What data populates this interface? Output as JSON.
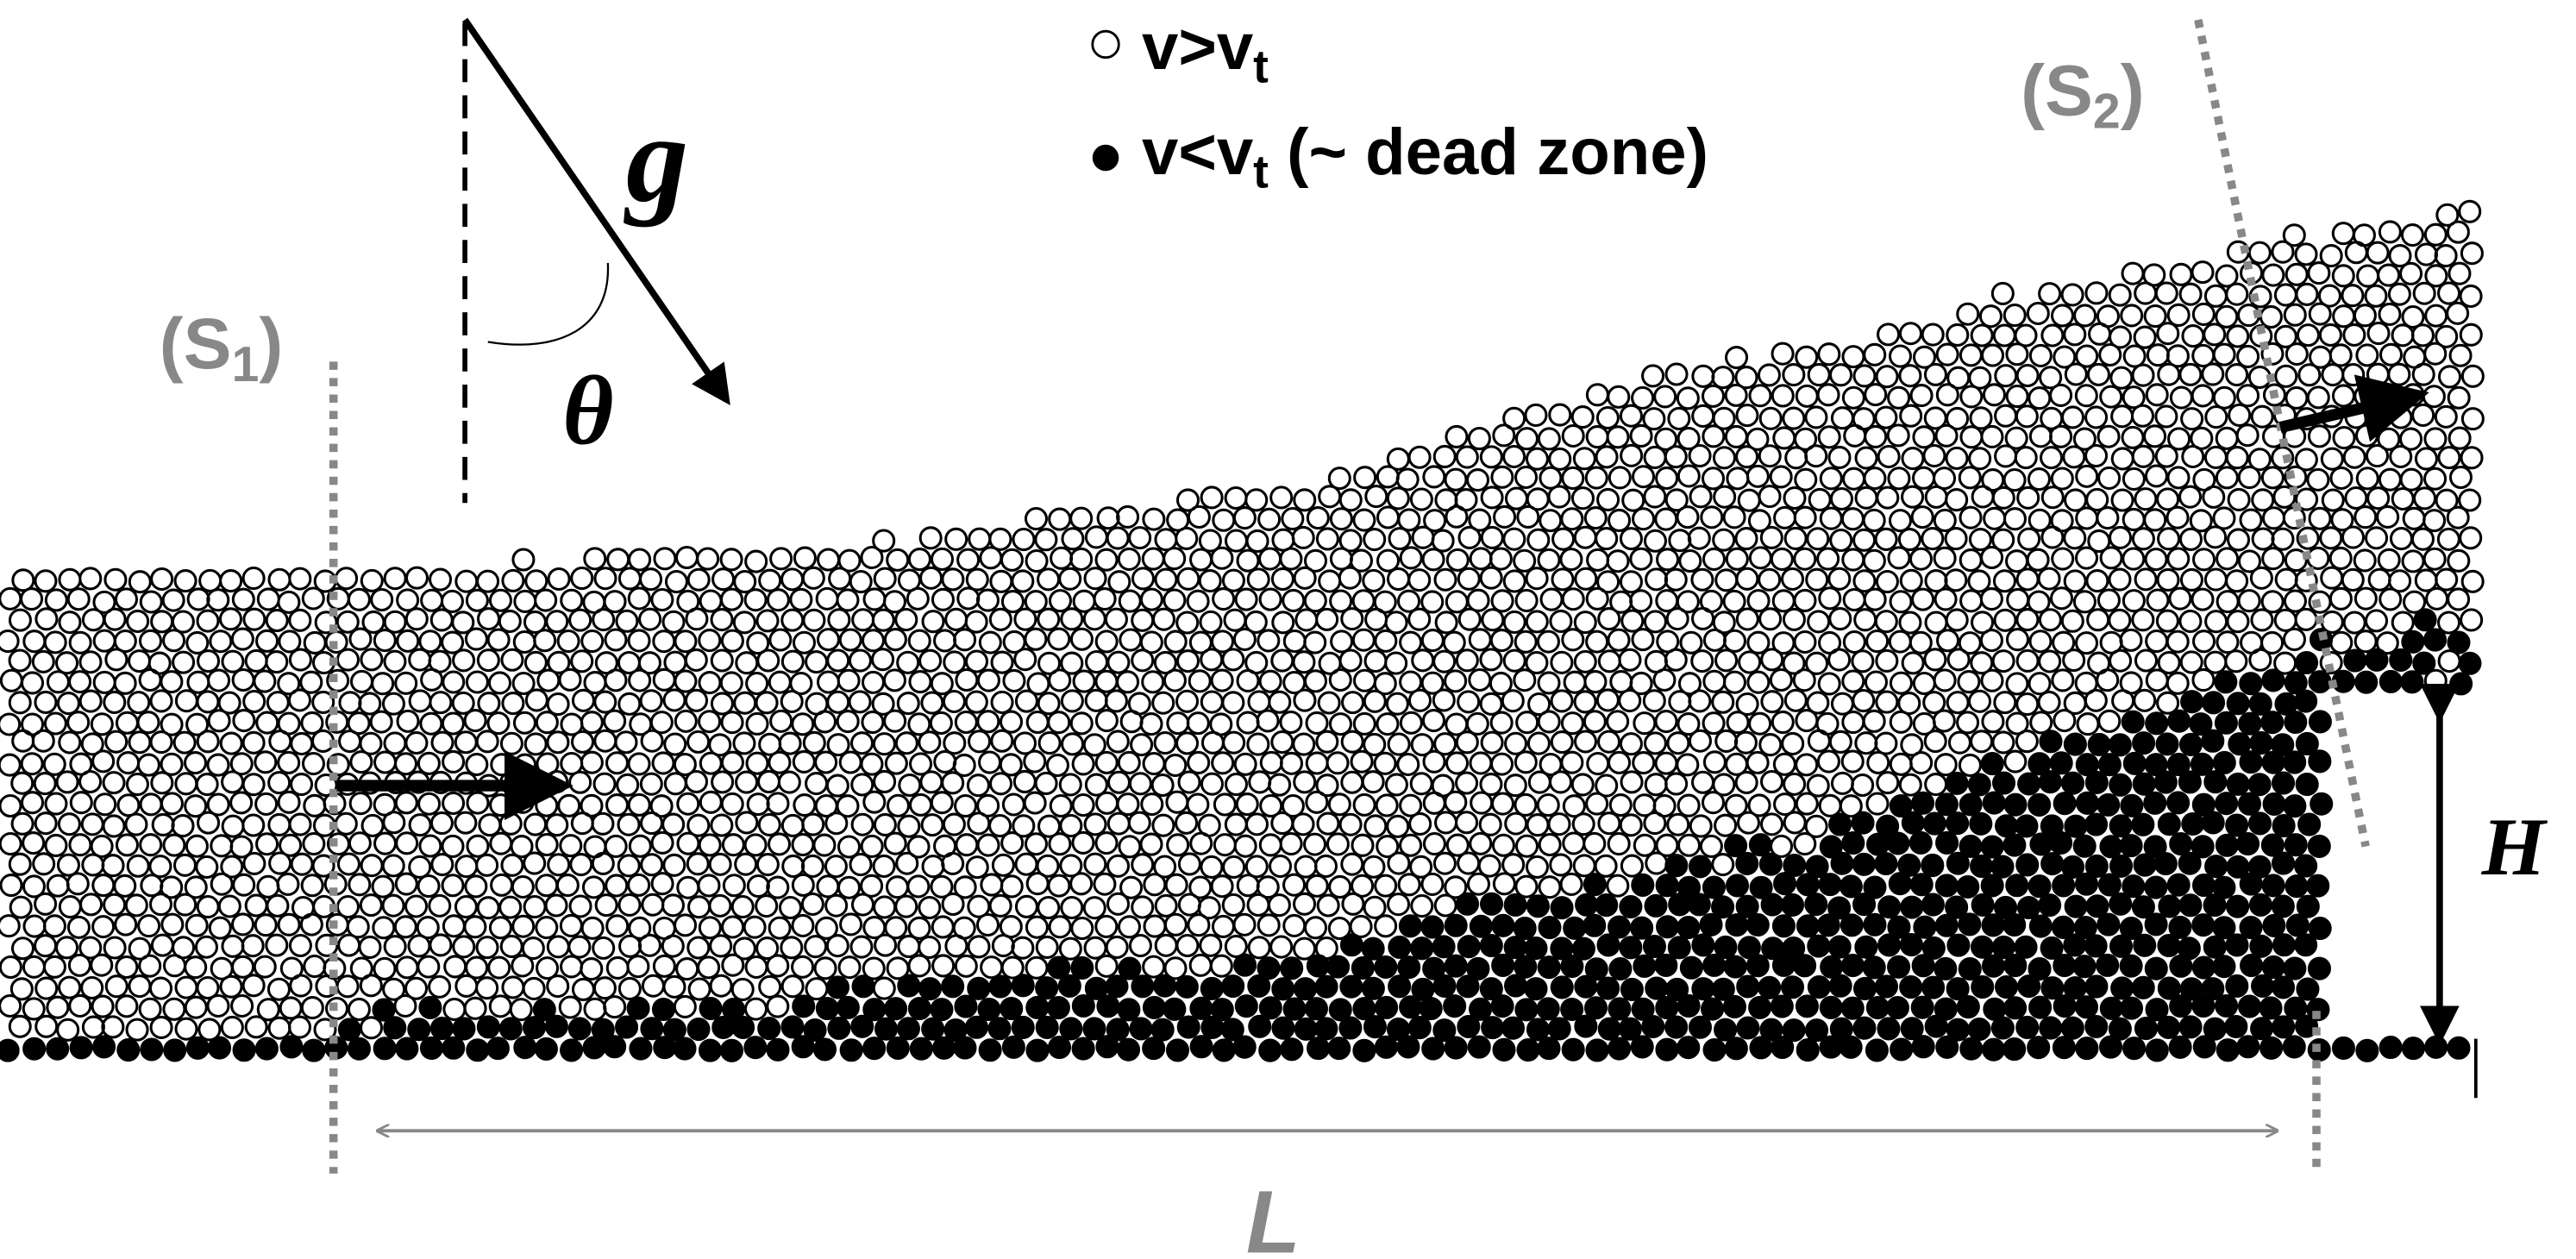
{
  "legend": [
    {
      "text": "v>v",
      "subscript": "t"
    },
    {
      "text": "v<v",
      "subscript": "t",
      "suffix": " (~ dead zone)"
    }
  ],
  "labels": {
    "gravity": "g",
    "angle": "θ",
    "section1": {
      "open": "(S",
      "subscript": "1",
      "close": ")"
    },
    "section2": {
      "open": "(S",
      "subscript": "2",
      "close": ")"
    },
    "height": "H",
    "length": "L"
  }
}
